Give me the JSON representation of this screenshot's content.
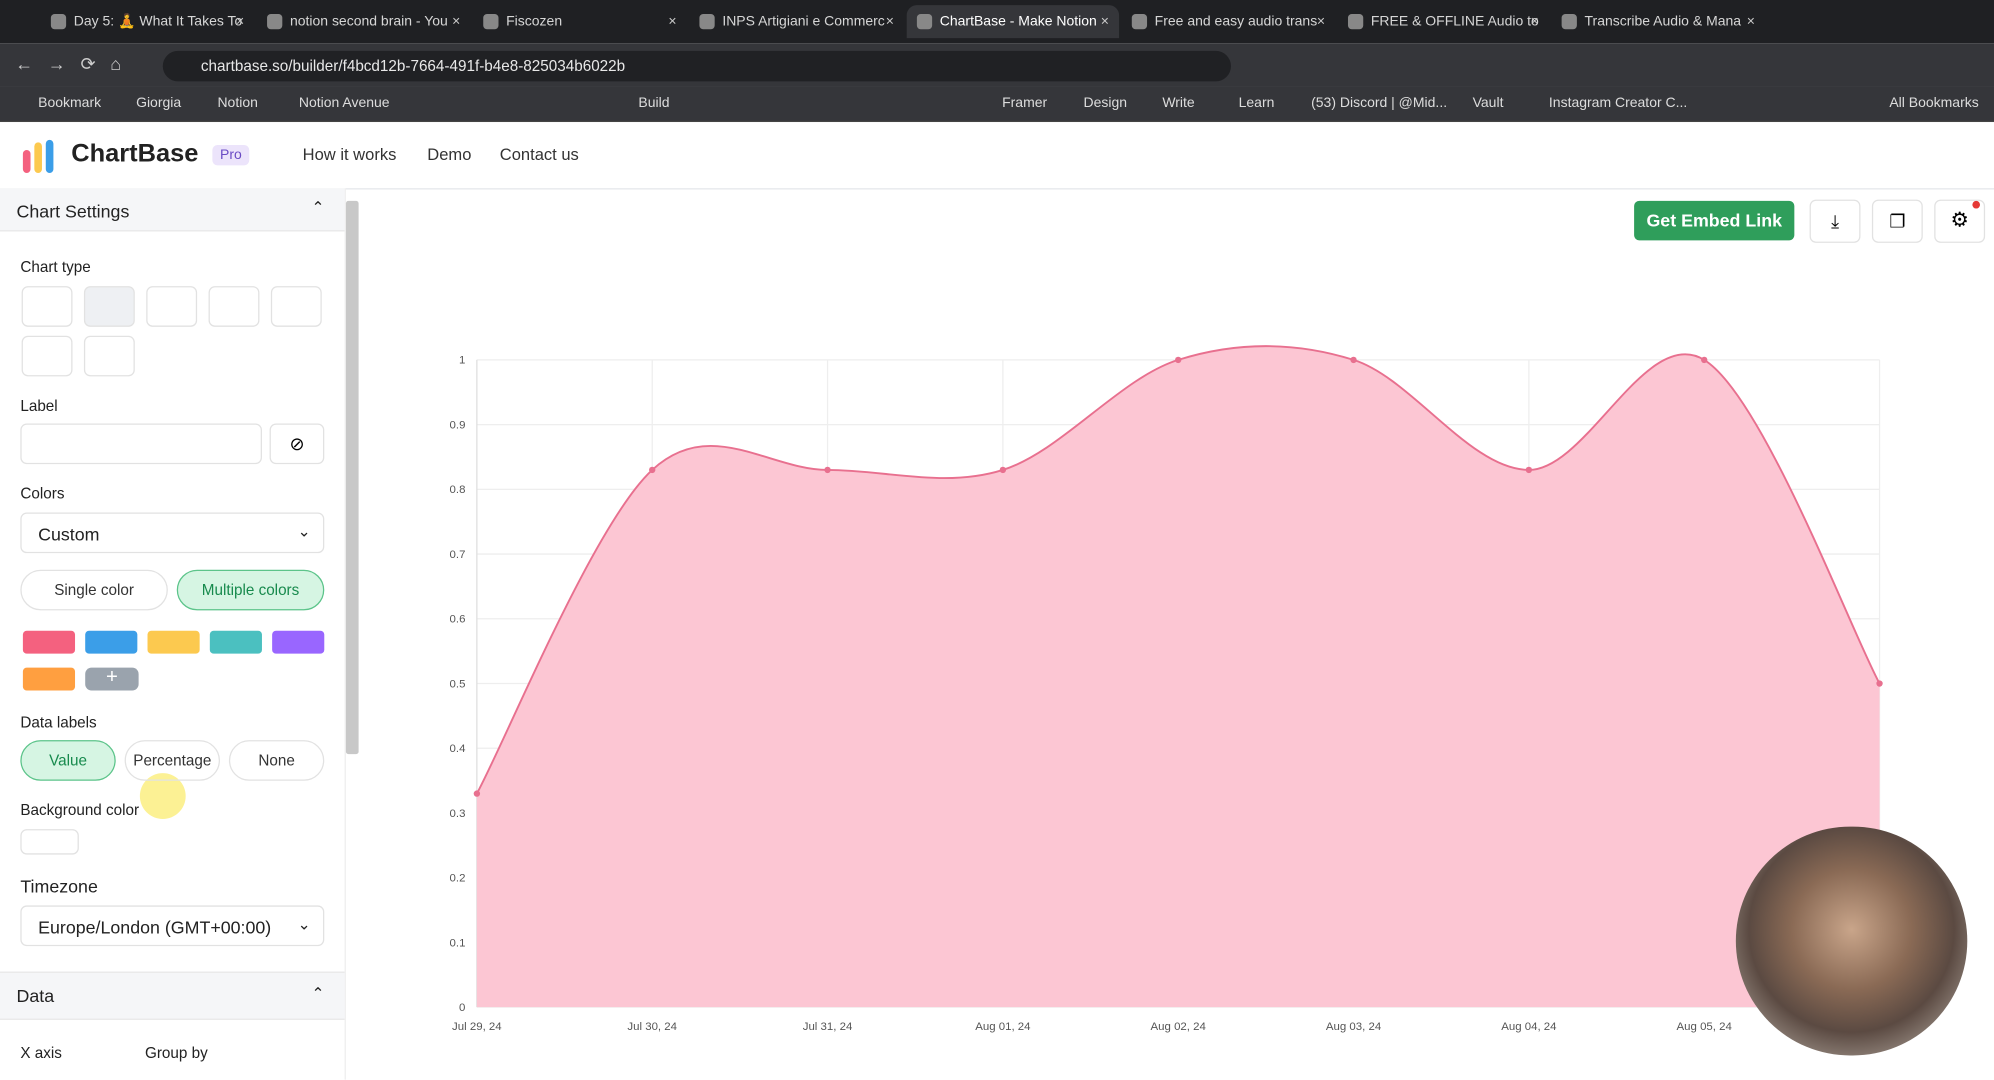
{
  "browser": {
    "tabs": [
      "Day 5: 🧘 What It Takes To",
      "notion second brain - You",
      "Fiscozen",
      "INPS Artigiani e Commerc",
      "ChartBase - Make Notion",
      "Free and easy audio trans",
      "FREE & OFFLINE Audio to",
      "Transcribe Audio & Mana"
    ],
    "url": "chartbase.so/builder/f4bcd12b-7664-491f-b4e8-825034b6022b",
    "bookmarks": [
      "Bookmark",
      "Giorgia",
      "Notion",
      "Notion Avenue",
      "Build",
      "Framer",
      "Design",
      "Write",
      "Learn",
      "(53) Discord | @Mid...",
      "Vault",
      "Instagram Creator C..."
    ],
    "all_bookmarks": "All Bookmarks"
  },
  "header": {
    "logo": "ChartBase",
    "badge": "Pro",
    "nav": [
      "How it works",
      "Demo",
      "Contact us"
    ]
  },
  "sidebar": {
    "section_title": "Chart Settings",
    "chart_type_label": "Chart type",
    "label_label": "Label",
    "colors_label": "Colors",
    "colors_select": "Custom",
    "color_modes": [
      "Single color",
      "Multiple colors"
    ],
    "swatches": [
      "#f4617f",
      "#3b9ee8",
      "#fcc94f",
      "#4bc0c0",
      "#9966ff",
      "#ff9f40"
    ],
    "data_labels_label": "Data labels",
    "data_label_options": [
      "Value",
      "Percentage",
      "None"
    ],
    "background_color_label": "Background color",
    "timezone_label": "Timezone",
    "timezone_select": "Europe/London (GMT+00:00)",
    "data_section_title": "Data",
    "x_axis_label": "X axis",
    "group_by_label": "Group by"
  },
  "toolbar": {
    "embed_button": "Get Embed Link"
  },
  "chart_data": {
    "type": "area",
    "categories": [
      "Jul 29, 24",
      "Jul 30, 24",
      "Jul 31, 24",
      "Aug 01, 24",
      "Aug 02, 24",
      "Aug 03, 24",
      "Aug 04, 24",
      "Aug 05, 24",
      null
    ],
    "values": [
      0.33,
      0.83,
      0.83,
      0.83,
      1,
      1,
      0.83,
      1,
      0.5
    ],
    "color": "#e8708f",
    "fill": "#fcc6d3",
    "ylim": [
      0,
      1
    ],
    "yticks": [
      0,
      0.1,
      0.2,
      0.3,
      0.4,
      0.5,
      0.6,
      0.7,
      0.8,
      0.9,
      1
    ],
    "grid": true
  }
}
